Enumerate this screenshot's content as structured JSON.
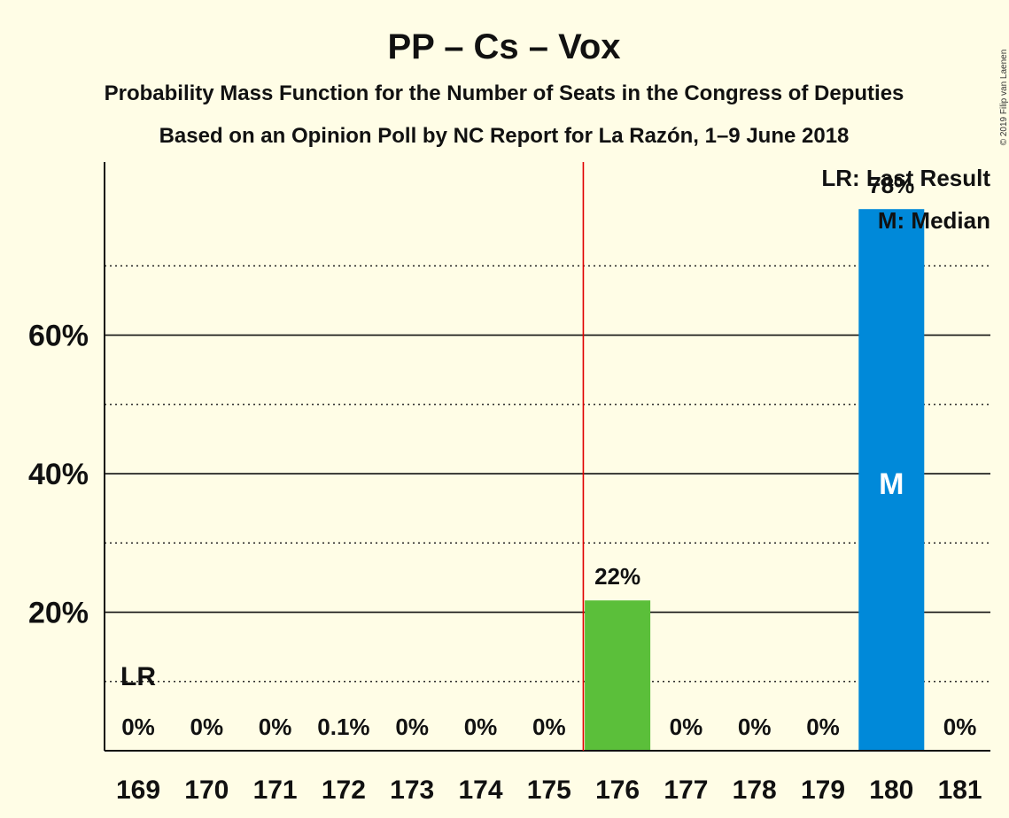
{
  "chart_data": {
    "type": "bar",
    "title": "PP – Cs – Vox",
    "subtitle": "Probability Mass Function for the Number of Seats in the Congress of Deputies",
    "subtitle2": "Based on an Opinion Poll by NC Report for La Razón, 1–9 June 2018",
    "copyright": "© 2019 Filip van Laenen",
    "categories": [
      "169",
      "170",
      "171",
      "172",
      "173",
      "174",
      "175",
      "176",
      "177",
      "178",
      "179",
      "180",
      "181"
    ],
    "values": [
      0,
      0,
      0,
      0.1,
      0,
      0,
      0,
      21.7,
      0,
      0,
      0,
      78.2,
      0
    ],
    "value_labels": [
      "0%",
      "0%",
      "0%",
      "0.1%",
      "0%",
      "0%",
      "0%",
      "22%",
      "0%",
      "0%",
      "0%",
      "78%",
      "0%"
    ],
    "bar_colors": [
      "#0089D9",
      "#0089D9",
      "#0089D9",
      "#0089D9",
      "#0089D9",
      "#0089D9",
      "#0089D9",
      "#5BBF3A",
      "#0089D9",
      "#0089D9",
      "#0089D9",
      "#0089D9",
      "#0089D9"
    ],
    "ylim": [
      0,
      85
    ],
    "yticks": [
      20,
      40,
      60
    ],
    "ytick_labels": [
      "20%",
      "40%",
      "60%"
    ],
    "minor_gridlines": [
      10,
      30,
      50,
      70
    ],
    "majority_line_after": "175",
    "majority_line_color": "#E00000",
    "last_result_category": "169",
    "last_result_marker": "LR",
    "median_category": "180",
    "median_marker": "M",
    "legend": [
      "LR: Last Result",
      "M: Median"
    ],
    "legend_position": "top-right"
  }
}
